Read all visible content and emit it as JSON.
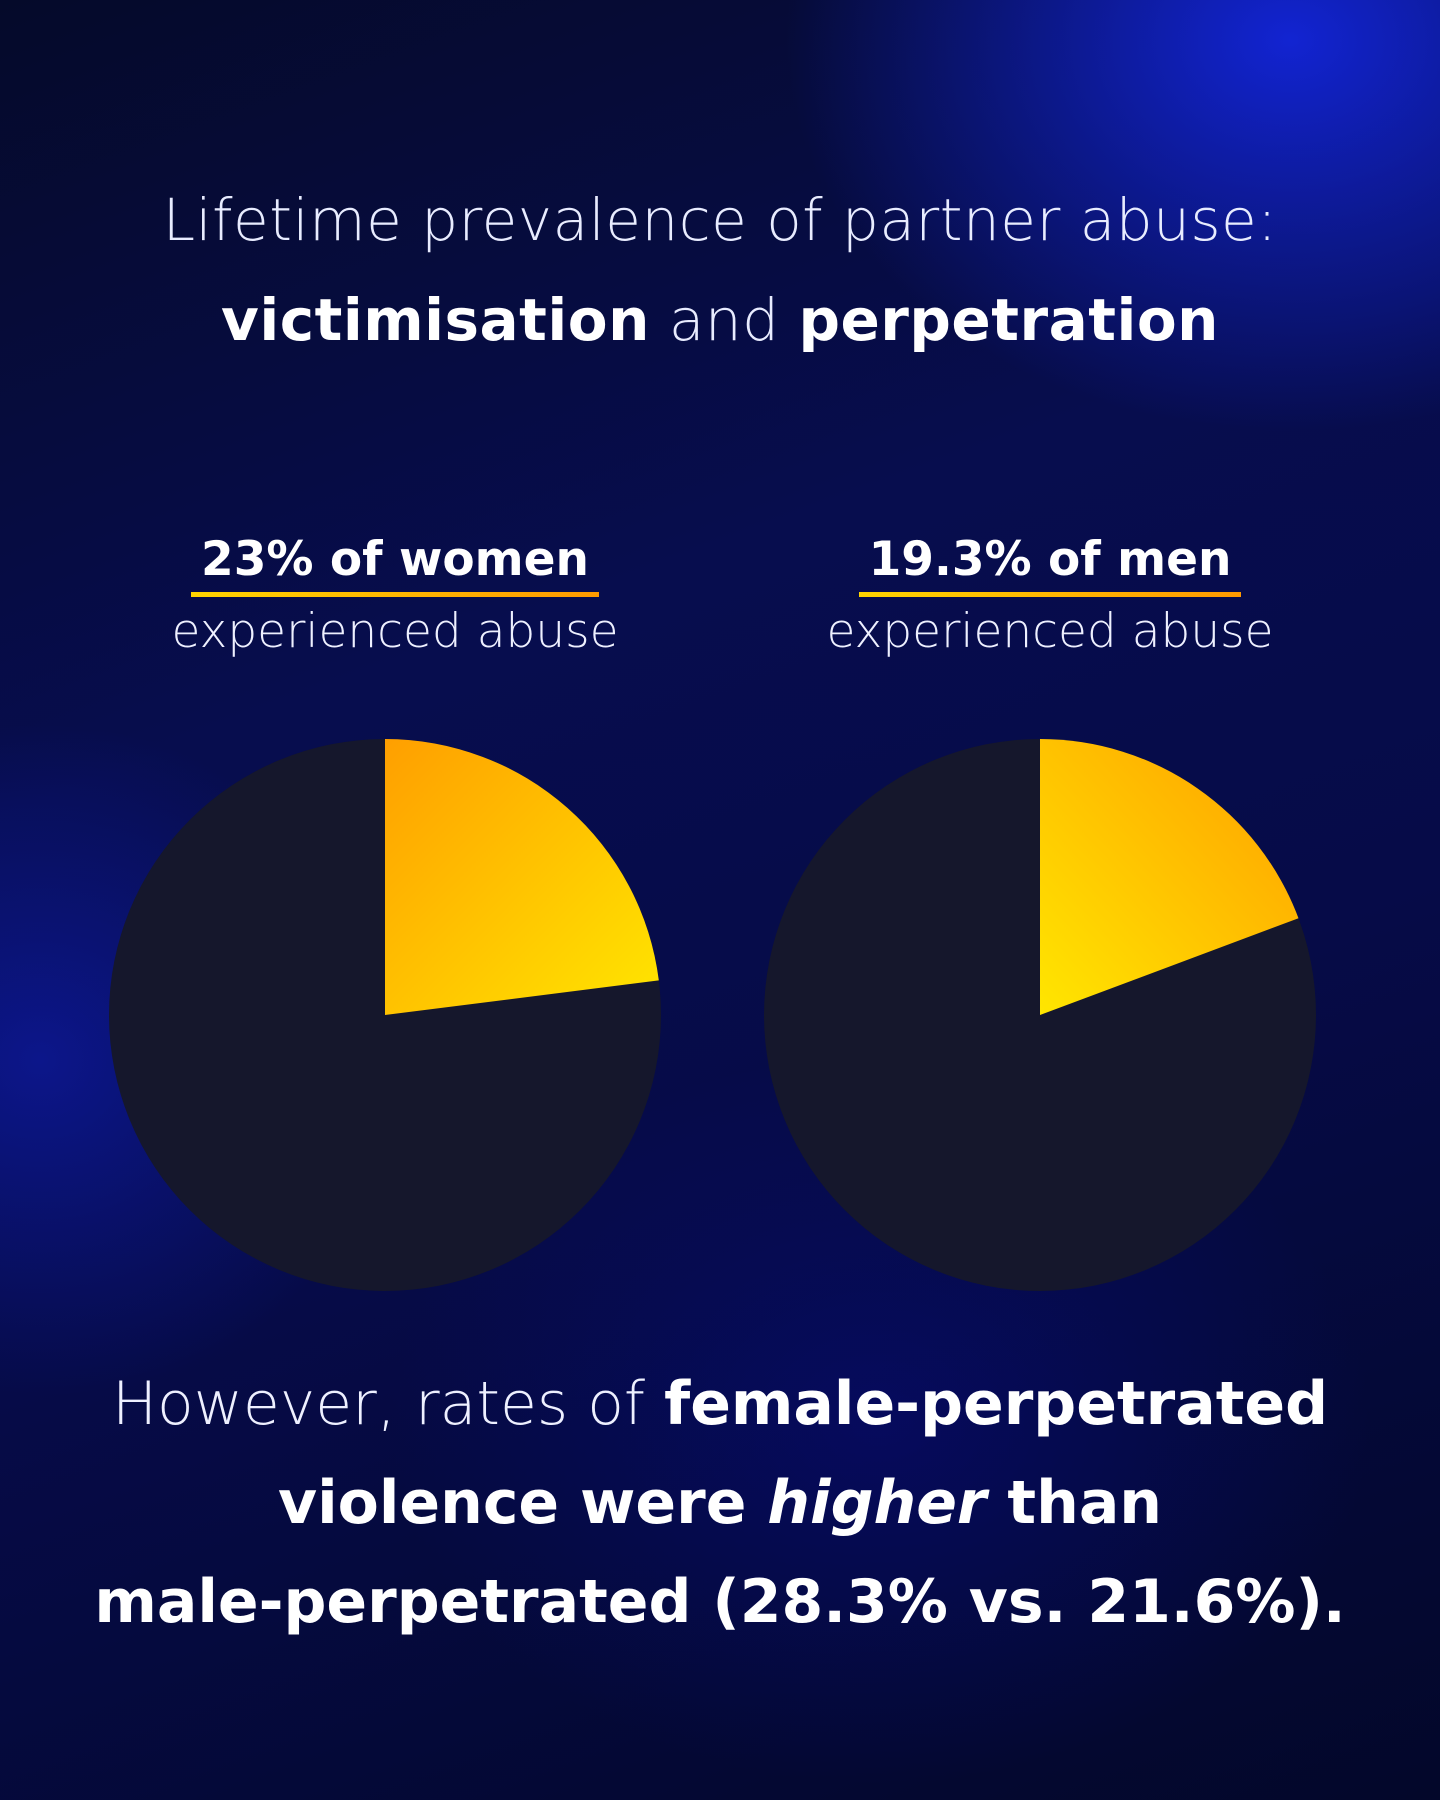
{
  "title": {
    "line1": "Lifetime prevalence of partner abuse:",
    "line2_bold_a": "victimisation",
    "line2_mid": " and ",
    "line2_bold_b": "perpetration"
  },
  "colors": {
    "slice_gradient_start": "#ff9f00",
    "slice_gradient_end": "#ffe600",
    "pie_rest": "#15172c",
    "underline_start": "#ffd400",
    "underline_end": "#ff9a00"
  },
  "chart_data": [
    {
      "type": "pie",
      "title": "23% of women",
      "subtitle": "experienced abuse",
      "slices": [
        {
          "label": "experienced abuse",
          "value": 23
        },
        {
          "label": "",
          "value": 77
        }
      ]
    },
    {
      "type": "pie",
      "title": "19.3% of men",
      "subtitle": "experienced abuse",
      "slices": [
        {
          "label": "experienced abuse",
          "value": 19.3
        },
        {
          "label": "",
          "value": 80.7
        }
      ]
    }
  ],
  "footer": {
    "part1": "However, rates of ",
    "part2_bold": "female-perpetrated",
    "part3_bold": "violence were ",
    "part4_italic": "higher",
    "part5_bold": " than",
    "part6_bold": "male-perpetrated ",
    "part7": "(28.3% vs. 21.6%)."
  }
}
